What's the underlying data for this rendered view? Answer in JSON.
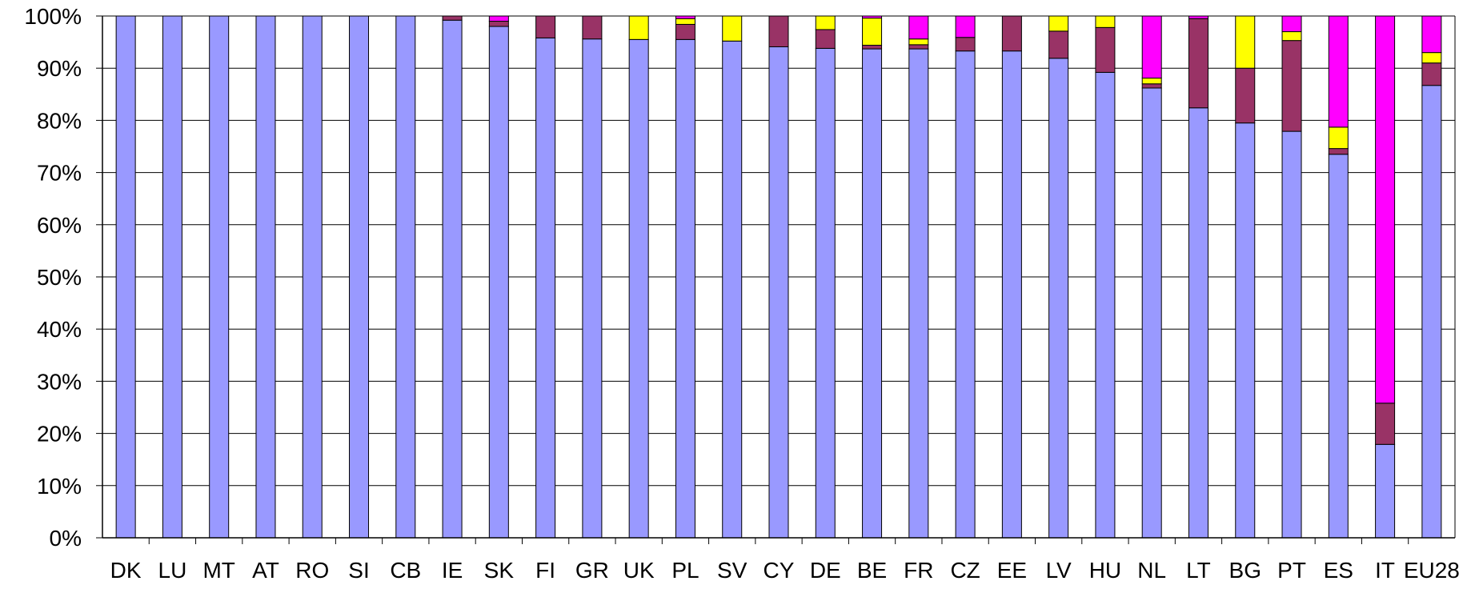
{
  "chart_data": {
    "type": "bar",
    "stacked": true,
    "percent": true,
    "categories": [
      "DK",
      "LU",
      "MT",
      "AT",
      "RO",
      "SI",
      "CB",
      "IE",
      "SK",
      "FI",
      "GR",
      "UK",
      "PL",
      "SV",
      "CY",
      "DE",
      "BE",
      "FR",
      "CZ",
      "EE",
      "LV",
      "HU",
      "NL",
      "LT",
      "BG",
      "PT",
      "ES",
      "IT",
      "EU28"
    ],
    "series": [
      {
        "color": "#9999ff",
        "values": [
          100,
          100,
          100,
          100,
          100,
          100,
          100,
          99.2,
          98.0,
          95.8,
          95.6,
          95.5,
          95.5,
          95.2,
          94.1,
          93.8,
          93.7,
          93.7,
          93.3,
          93.3,
          91.9,
          89.2,
          86.2,
          82.4,
          79.5,
          77.9,
          73.5,
          17.9,
          86.7
        ]
      },
      {
        "color": "#993366",
        "values": [
          0,
          0,
          0,
          0,
          0,
          0,
          0,
          0.8,
          1.0,
          4.2,
          4.4,
          0,
          2.9,
          0,
          5.9,
          3.6,
          0.7,
          0.8,
          2.6,
          6.7,
          5.2,
          8.6,
          0.8,
          17.1,
          10.5,
          17.4,
          1.1,
          7.9,
          4.3
        ]
      },
      {
        "color": "#ffff00",
        "values": [
          0,
          0,
          0,
          0,
          0,
          0,
          0,
          0,
          0,
          0,
          0,
          4.5,
          1.1,
          4.8,
          0,
          2.6,
          5.2,
          1.1,
          0,
          0,
          2.9,
          2.2,
          1.1,
          0,
          10.0,
          1.7,
          4.1,
          0,
          2.0
        ]
      },
      {
        "color": "#ff00ff",
        "values": [
          0,
          0,
          0,
          0,
          0,
          0,
          0,
          0,
          1.0,
          0,
          0,
          0,
          0.5,
          0,
          0,
          0,
          0.4,
          4.4,
          4.1,
          0,
          0,
          0,
          11.9,
          0.5,
          0,
          3.0,
          21.3,
          74.2,
          7.0
        ]
      }
    ],
    "ylim": [
      0,
      100
    ],
    "yticks": [
      "0%",
      "10%",
      "20%",
      "30%",
      "40%",
      "50%",
      "60%",
      "70%",
      "80%",
      "90%",
      "100%"
    ],
    "grid": true,
    "legend": "none",
    "title": "",
    "xlabel": "",
    "ylabel": ""
  }
}
